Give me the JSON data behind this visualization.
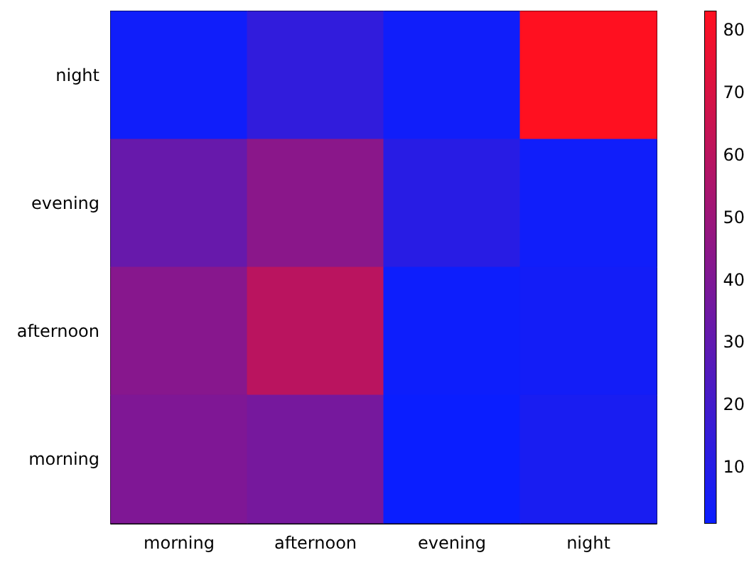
{
  "chart_data": {
    "type": "heatmap",
    "categories": [
      "morning",
      "afternoon",
      "evening",
      "night"
    ],
    "y_categories": [
      "night",
      "evening",
      "afternoon",
      "morning"
    ],
    "cells": [
      [
        3,
        14,
        3,
        83
      ],
      [
        32,
        44,
        11,
        3
      ],
      [
        43,
        60,
        2,
        4
      ],
      [
        40,
        37,
        1,
        6
      ]
    ],
    "colors": [
      "#0a1eff",
      "#ff1020"
    ],
    "clim": [
      1,
      83
    ],
    "cticks": [
      10,
      20,
      30,
      40,
      50,
      60,
      70,
      80
    ]
  }
}
